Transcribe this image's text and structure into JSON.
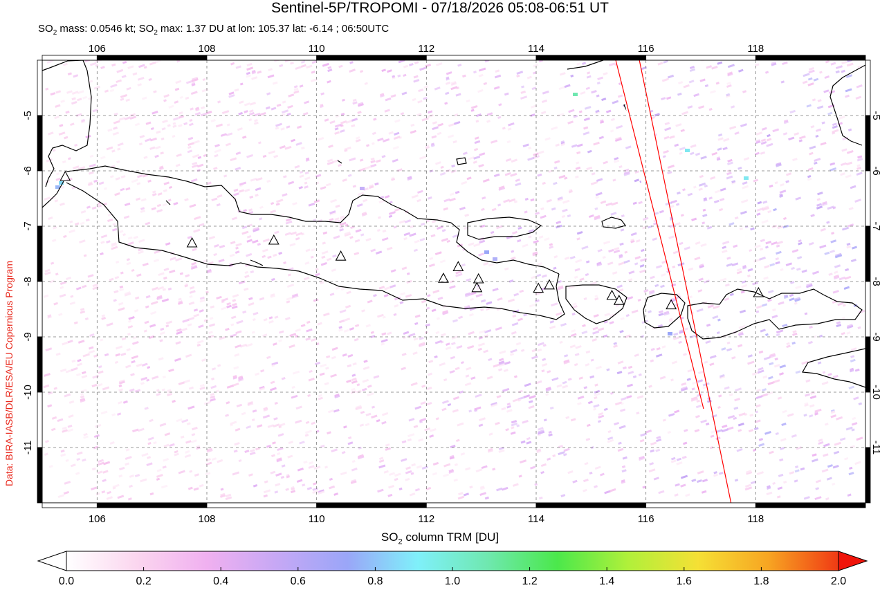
{
  "title": "Sentinel-5P/TROPOMI - 07/18/2026 05:08-06:51 UT",
  "subtitle_parts": {
    "a": "SO",
    "a_sub": "2",
    "b": " mass: 0.0546 kt; SO",
    "b_sub": "2",
    "c": " max: 1.37 DU at lon: 105.37 lat: -6.14 ; 06:50UTC"
  },
  "credit": "Data: BIRA-IASB/DLR/ESA/EU Copernicus Program",
  "map": {
    "lon_range": [
      105.0,
      120.0
    ],
    "lat_range": [
      -12.0,
      -4.0
    ],
    "lon_ticks": [
      "106",
      "108",
      "110",
      "112",
      "114",
      "116",
      "118"
    ],
    "lat_ticks": [
      "-5",
      "-6",
      "-7",
      "-8",
      "-9",
      "-10",
      "-11"
    ],
    "grid": "dashed",
    "volcano_symbol": "triangle-icon",
    "volcanoes": [
      {
        "lon": 105.42,
        "lat": -6.1
      },
      {
        "lon": 107.73,
        "lat": -7.3
      },
      {
        "lon": 109.22,
        "lat": -7.25
      },
      {
        "lon": 110.44,
        "lat": -7.54
      },
      {
        "lon": 112.31,
        "lat": -7.94
      },
      {
        "lon": 112.58,
        "lat": -7.73
      },
      {
        "lon": 112.95,
        "lat": -7.95
      },
      {
        "lon": 112.92,
        "lat": -8.11
      },
      {
        "lon": 114.04,
        "lat": -8.12
      },
      {
        "lon": 114.24,
        "lat": -8.06
      },
      {
        "lon": 115.38,
        "lat": -8.25
      },
      {
        "lon": 115.51,
        "lat": -8.34
      },
      {
        "lon": 116.46,
        "lat": -8.42
      },
      {
        "lon": 118.05,
        "lat": -8.2
      }
    ],
    "swath_edges": [
      [
        [
          115.45,
          -4.0
        ],
        [
          117.05,
          -10.3
        ]
      ],
      [
        [
          115.88,
          -4.0
        ],
        [
          117.55,
          -12.0
        ]
      ]
    ],
    "swath_color": "#ff0000"
  },
  "colorbar": {
    "label_main": "SO",
    "label_sub": "2",
    "label_rest": " column TRM [DU]",
    "ticks": [
      "0.0",
      "0.2",
      "0.4",
      "0.6",
      "0.8",
      "1.0",
      "1.2",
      "1.4",
      "1.6",
      "1.8",
      "2.0"
    ],
    "colors": [
      "#ffffff",
      "#fbd6ef",
      "#f0b0f0",
      "#c6a8f5",
      "#9aa6f8",
      "#7ff0fa",
      "#6fe8b0",
      "#4be84b",
      "#b0f03a",
      "#f5e035",
      "#f7a522",
      "#f03a14"
    ],
    "under_color": "#ffffff",
    "over_color": "#f0140a"
  }
}
